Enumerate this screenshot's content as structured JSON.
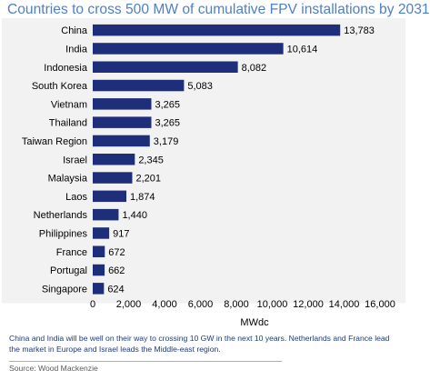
{
  "chart_data": {
    "type": "bar",
    "orientation": "horizontal",
    "title": "Countries to cross 500 MW of cumulative FPV installations by 2031",
    "categories": [
      "China",
      "India",
      "Indonesia",
      "South Korea",
      "Vietnam",
      "Thailand",
      "Taiwan Region",
      "Israel",
      "Malaysia",
      "Laos",
      "Netherlands",
      "Philippines",
      "France",
      "Portugal",
      "Singapore"
    ],
    "values": [
      13783,
      10614,
      8082,
      5083,
      3265,
      3265,
      3179,
      2345,
      2201,
      1874,
      1440,
      917,
      672,
      662,
      624
    ],
    "value_labels": [
      "13,783",
      "10,614",
      "8,082",
      "5,083",
      "3,265",
      "3,265",
      "3,179",
      "2,345",
      "2,201",
      "1,874",
      "1,440",
      "917",
      "672",
      "662",
      "624"
    ],
    "xlabel": "MWdc",
    "ylabel": "",
    "xlim": [
      0,
      16000
    ],
    "xticks": [
      0,
      2000,
      4000,
      6000,
      8000,
      10000,
      12000,
      14000,
      16000
    ],
    "xtick_labels": [
      "0",
      "2,000",
      "4,000",
      "6,000",
      "8,000",
      "10,000",
      "12,000",
      "14,000",
      "16,000"
    ],
    "grid": false,
    "colors": {
      "bar": "#1f2e7a",
      "plot_background": "#f2f2f2",
      "title": "#4f7fc4",
      "caption": "#1f3a78"
    }
  },
  "caption": "China and India will be well on their way to crossing 10 GW in the next 10 years. Netherlands and France lead the market in Europe and Israel leads the Middle-east region.",
  "source": "Source: Wood Mackenzie"
}
